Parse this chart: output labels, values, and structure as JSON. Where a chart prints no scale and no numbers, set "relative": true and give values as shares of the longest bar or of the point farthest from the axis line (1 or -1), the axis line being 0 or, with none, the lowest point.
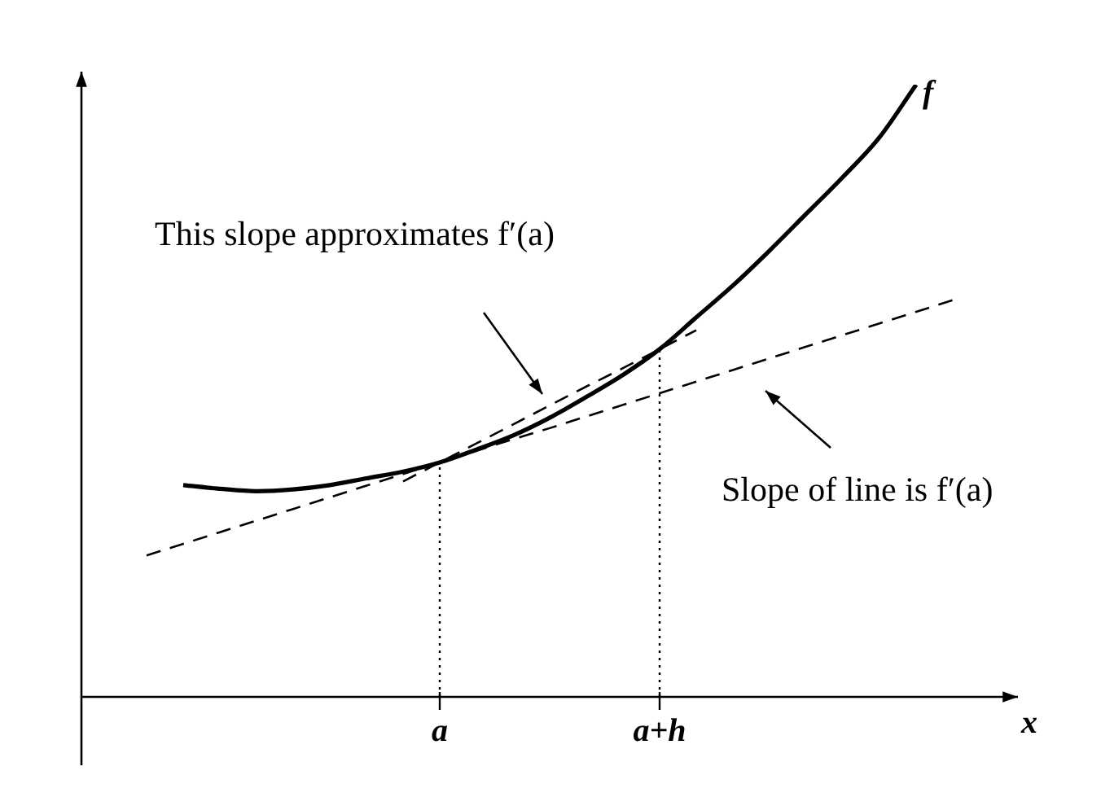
{
  "chart_data": {
    "type": "line",
    "relative": true,
    "xlabel": "x",
    "legend": false,
    "grid": false,
    "marker": "none",
    "categories": [
      null,
      null,
      null,
      null,
      null,
      null,
      null,
      null,
      "a",
      null,
      null,
      null,
      null,
      null,
      "a+h",
      null,
      null,
      null,
      null,
      null,
      null,
      null,
      null
    ],
    "series": [
      {
        "name": "f",
        "color": "#000000",
        "line_style": "solid",
        "values": [
          null,
          0.346,
          0.34,
          0.336,
          0.339,
          0.346,
          0.357,
          0.368,
          0.383,
          0.404,
          0.427,
          0.456,
          0.49,
          0.526,
          0.568,
          0.62,
          0.672,
          0.729,
          0.789,
          0.849,
          0.914,
          1,
          null
        ]
      },
      {
        "color": "#000000",
        "line_style": "dashed",
        "values": [
          0.231,
          0.25,
          0.269,
          0.288,
          0.307,
          0.326,
          0.345,
          0.364,
          0.383,
          0.402,
          0.421,
          0.439,
          0.458,
          0.477,
          0.496,
          0.515,
          0.534,
          0.553,
          0.572,
          0.591,
          0.61,
          0.629,
          0.648
        ]
      },
      {
        "color": "#000000",
        "line_style": "dashed",
        "values": [
          null,
          null,
          null,
          null,
          null,
          null,
          null,
          0.352,
          0.383,
          0.414,
          0.445,
          0.476,
          0.507,
          0.537,
          0.568,
          0.599,
          null,
          null,
          null,
          null,
          null,
          null,
          null
        ]
      }
    ],
    "ref_lines": [
      {
        "axis": "x",
        "value": "a",
        "line_style": "dotted"
      },
      {
        "axis": "x",
        "value": "a+h",
        "line_style": "dotted"
      }
    ],
    "annotations": [
      "This slope approximates f′(a)",
      "Slope of line is f′(a)"
    ]
  }
}
